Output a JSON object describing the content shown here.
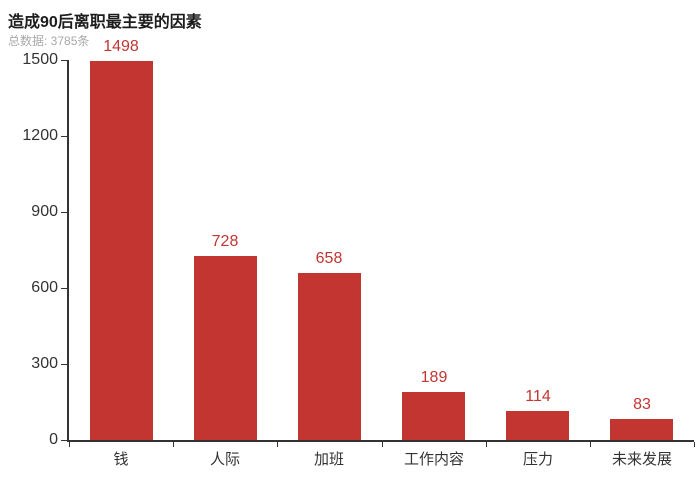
{
  "header": {
    "title": "造成90后离职最主要的因素",
    "subtitle": "总数据: 3785条"
  },
  "chart_data": {
    "type": "bar",
    "title": "造成90后离职最主要的因素",
    "subtitle": "总数据: 3785条",
    "categories": [
      "钱",
      "人际",
      "加班",
      "工作内容",
      "压力",
      "未来发展"
    ],
    "values": [
      1498,
      728,
      658,
      189,
      114,
      83
    ],
    "xlabel": "",
    "ylabel": "",
    "ylim": [
      0,
      1500
    ],
    "yticks": [
      0,
      300,
      600,
      900,
      1200,
      1500
    ],
    "grid": false,
    "legend_position": "none",
    "bar_color": "#c23531",
    "value_label_color": "#c23531",
    "axis_color": "#333333"
  }
}
